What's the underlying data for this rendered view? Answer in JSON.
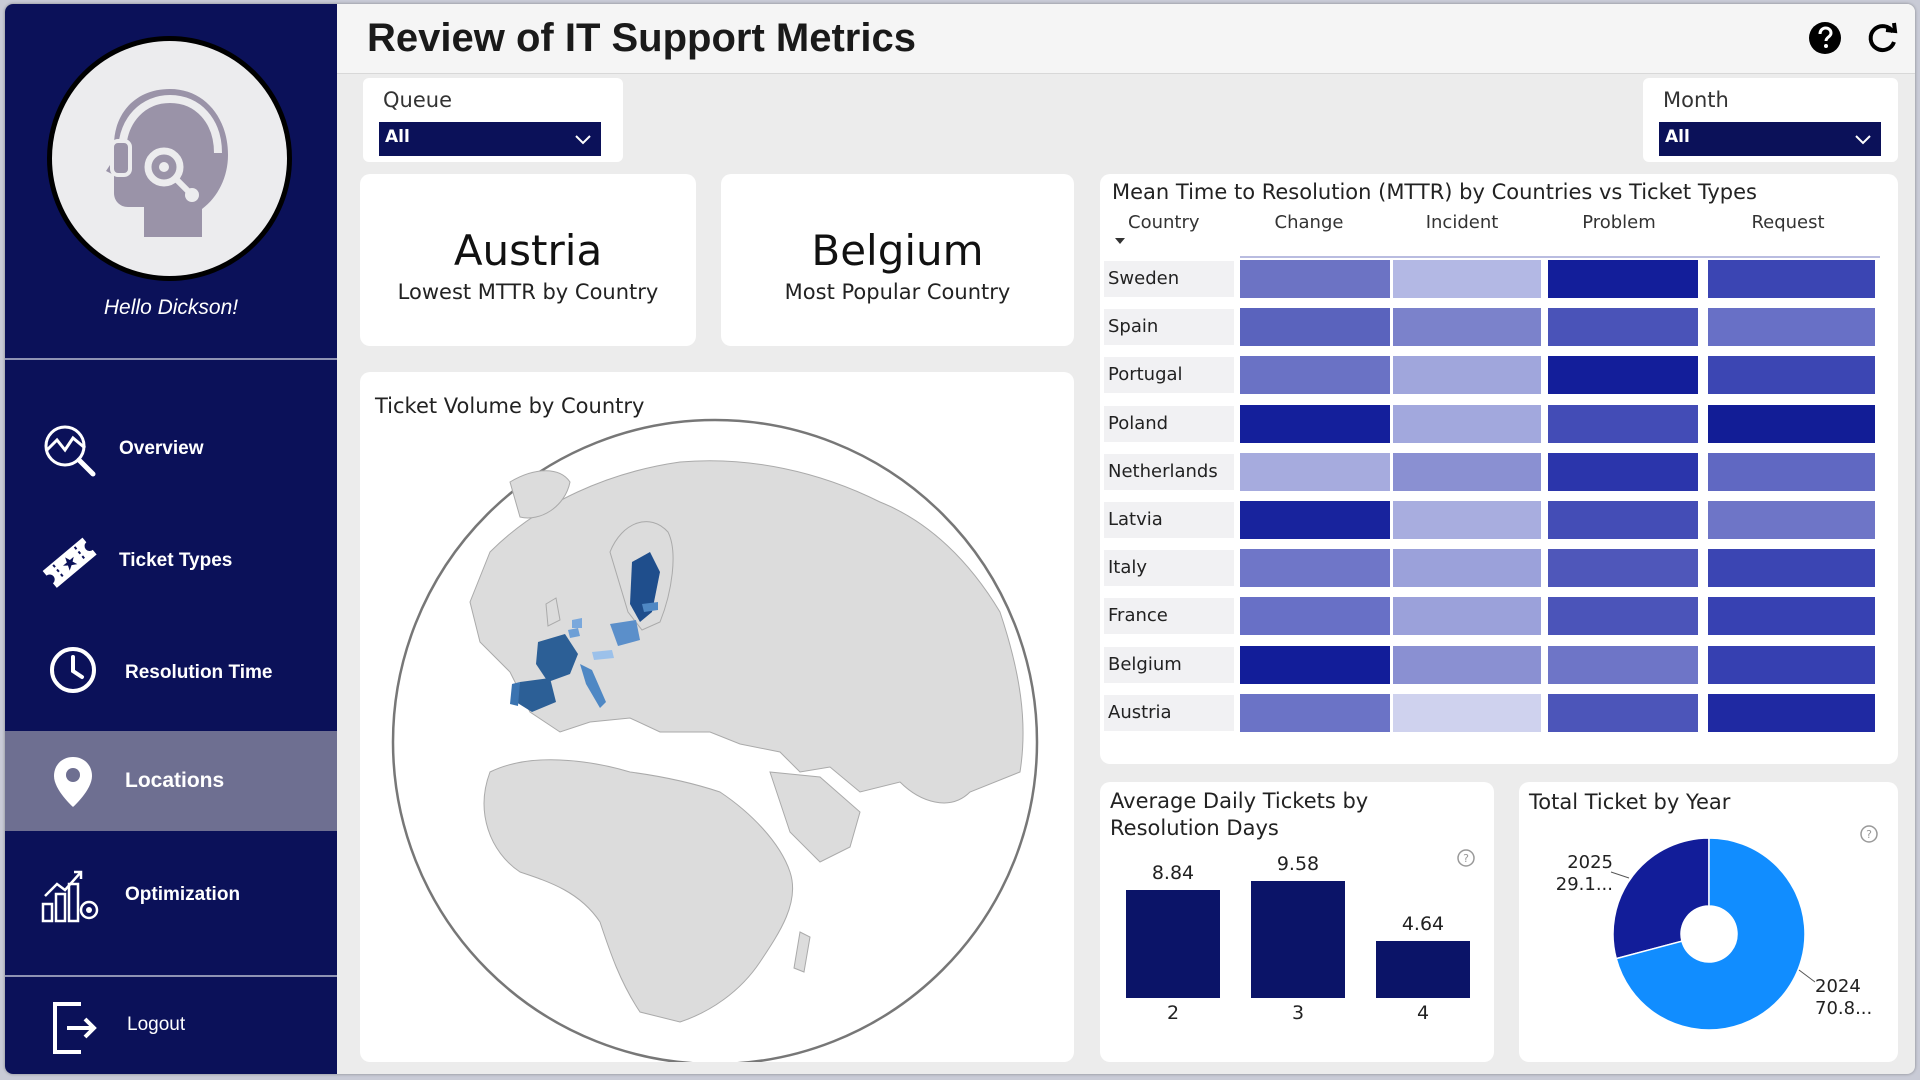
{
  "app": {
    "title": "Review of IT Support Metrics"
  },
  "user": {
    "greeting": "Hello Dickson!"
  },
  "nav": [
    {
      "label": "Overview",
      "icon": "chart-search-icon"
    },
    {
      "label": "Ticket Types",
      "icon": "ticket-icon"
    },
    {
      "label": "Resolution Time",
      "icon": "clock-icon"
    },
    {
      "label": "Locations",
      "icon": "location-pin-icon",
      "active": true
    },
    {
      "label": "Optimization",
      "icon": "growth-chart-icon"
    }
  ],
  "logout": {
    "label": "Logout"
  },
  "filters": {
    "queue": {
      "label": "Queue",
      "value": "All"
    },
    "month": {
      "label": "Month",
      "value": "All"
    }
  },
  "kpis": [
    {
      "value": "Austria",
      "label": "Lowest MTTR by Country"
    },
    {
      "value": "Belgium",
      "label": "Most Popular Country"
    }
  ],
  "map": {
    "title": "Ticket Volume by Country"
  },
  "matrix": {
    "title": "Mean Time to Resolution (MTTR) by Countries vs Ticket Types",
    "row_header": "Country",
    "columns": [
      "Change",
      "Incident",
      "Problem",
      "Request"
    ],
    "rows": [
      {
        "label": "Sweden",
        "shades": [
          "#6c73c4",
          "#b3b8e4",
          "#131e9a",
          "#3b45b3"
        ]
      },
      {
        "label": "Spain",
        "shades": [
          "#5a63bd",
          "#7b82cb",
          "#4a53b8",
          "#6870c6"
        ]
      },
      {
        "label": "Portugal",
        "shades": [
          "#6a72c5",
          "#a0a6dc",
          "#131e9a",
          "#3c46b3"
        ]
      },
      {
        "label": "Poland",
        "shades": [
          "#141f9b",
          "#a2a8dd",
          "#434cb6",
          "#121d96"
        ]
      },
      {
        "label": "Netherlands",
        "shades": [
          "#a6abde",
          "#8a90d2",
          "#2b35ab",
          "#6068c2"
        ]
      },
      {
        "label": "Latvia",
        "shades": [
          "#18239d",
          "#a8addf",
          "#444db6",
          "#6e75c7"
        ]
      },
      {
        "label": "Italy",
        "shades": [
          "#6f76c8",
          "#9ba1da",
          "#4f57ba",
          "#3b45b3"
        ]
      },
      {
        "label": "France",
        "shades": [
          "#6870c6",
          "#9ba1da",
          "#4b54b9",
          "#3741b2"
        ]
      },
      {
        "label": "Belgium",
        "shades": [
          "#121d99",
          "#8a90d2",
          "#6e75c7",
          "#3640b1"
        ]
      },
      {
        "label": "Austria",
        "shades": [
          "#6b73c6",
          "#cfd2ee",
          "#4c55b9",
          "#1f29a2"
        ]
      }
    ]
  },
  "bar_chart": {
    "title_line1": "Average Daily Tickets by",
    "title_line2": "Resolution Days"
  },
  "donut": {
    "title": "Total Ticket by Year"
  },
  "chart_data": [
    {
      "type": "bar",
      "title": "Average Daily Tickets by Resolution Days",
      "categories": [
        "2",
        "3",
        "4"
      ],
      "values": [
        8.84,
        9.58,
        4.64
      ],
      "value_labels": [
        "8.84",
        "9.58",
        "4.64"
      ],
      "color": "#0b1468"
    },
    {
      "type": "pie",
      "title": "Total Ticket by Year",
      "categories": [
        "2025",
        "2024"
      ],
      "values": [
        29.1,
        70.8
      ],
      "value_labels": [
        "29.1...",
        "70.8..."
      ],
      "colors": [
        "#121d99",
        "#118dff"
      ]
    }
  ]
}
